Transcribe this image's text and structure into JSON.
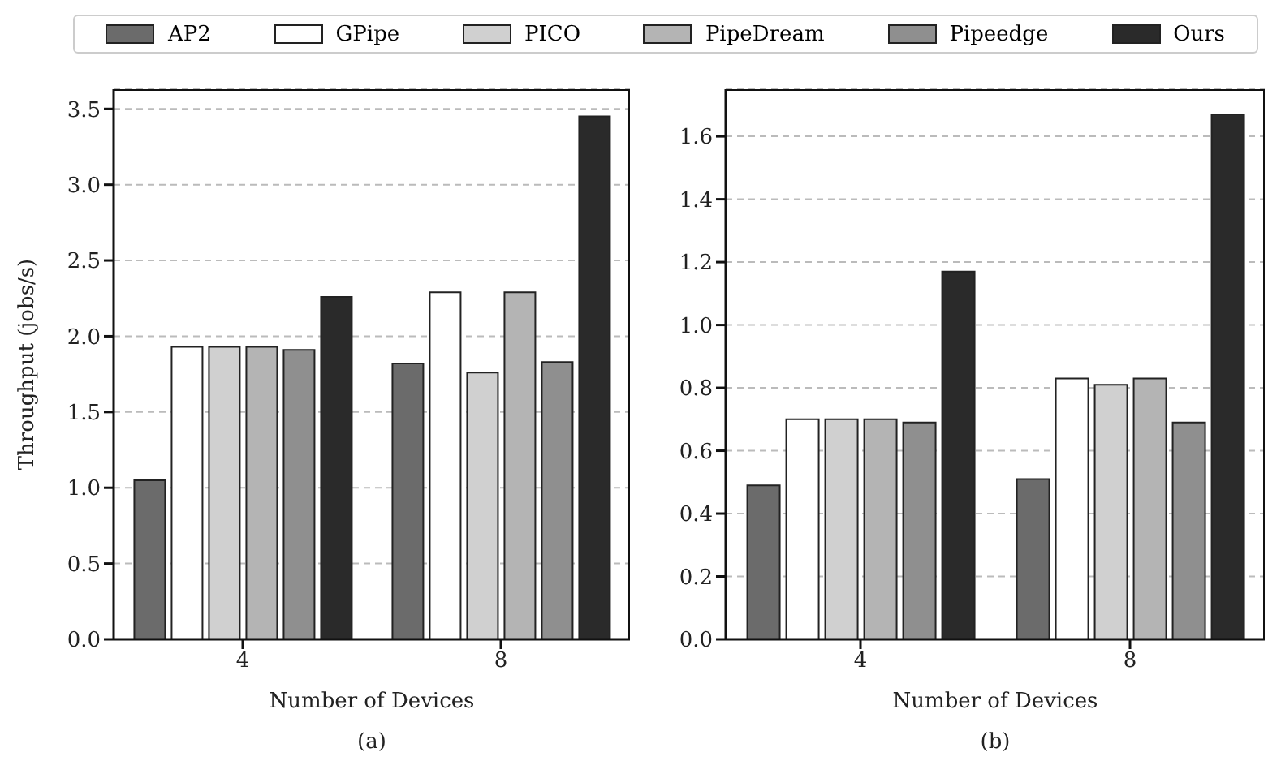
{
  "chart_data": [
    {
      "type": "bar",
      "xlabel": "Number of Devices",
      "ylabel": "Throughput (jobs/s)",
      "categories": [
        "4",
        "8"
      ],
      "series": [
        {
          "name": "AP2",
          "color": "#6b6b6b",
          "values": [
            1.05,
            1.82
          ]
        },
        {
          "name": "GPipe",
          "color": "#ffffff",
          "values": [
            1.93,
            2.29
          ]
        },
        {
          "name": "PICO",
          "color": "#d0d0d0",
          "values": [
            1.93,
            1.76
          ]
        },
        {
          "name": "PipeDream",
          "color": "#b4b4b4",
          "values": [
            1.93,
            2.29
          ]
        },
        {
          "name": "Pipeedge",
          "color": "#8f8f8f",
          "values": [
            1.91,
            1.83
          ]
        },
        {
          "name": "Ours",
          "color": "#2a2a2a",
          "values": [
            2.26,
            3.45
          ]
        }
      ],
      "ylim": [
        0,
        3.63
      ],
      "yticks": [
        {
          "value": 0,
          "label": "0.0"
        },
        0.5,
        {
          "value": 1,
          "label": "1.0"
        },
        1.5,
        {
          "value": 2,
          "label": "2.0"
        },
        2.5,
        {
          "value": 3,
          "label": "3.0"
        },
        3.5
      ],
      "grid": "y",
      "legend": "top",
      "annotations": [
        "(a)"
      ]
    },
    {
      "type": "bar",
      "xlabel": "Number of Devices",
      "categories": [
        "4",
        "8"
      ],
      "series": [
        {
          "color": "#6b6b6b",
          "values": [
            0.49,
            0.51
          ]
        },
        {
          "color": "#ffffff",
          "values": [
            0.7,
            0.83
          ]
        },
        {
          "color": "#d0d0d0",
          "values": [
            0.7,
            0.81
          ]
        },
        {
          "color": "#b4b4b4",
          "values": [
            0.7,
            0.83
          ]
        },
        {
          "color": "#8f8f8f",
          "values": [
            0.69,
            0.69
          ]
        },
        {
          "color": "#2a2a2a",
          "values": [
            1.17,
            1.67
          ]
        }
      ],
      "ylim": [
        0,
        1.75
      ],
      "yticks": [
        {
          "value": 0,
          "label": "0.0"
        },
        0.2,
        0.4,
        0.6,
        0.8,
        {
          "value": 1,
          "label": "1.0"
        },
        1.2,
        1.4,
        1.6
      ],
      "grid": "y",
      "annotations": [
        "(b)"
      ]
    }
  ]
}
